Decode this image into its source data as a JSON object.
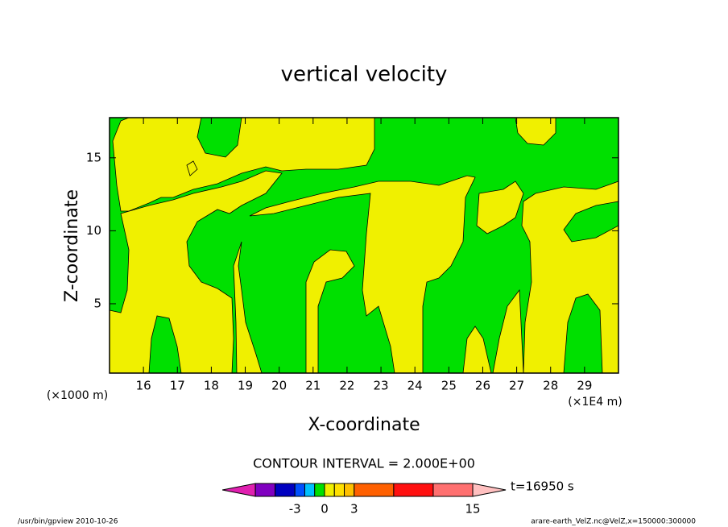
{
  "chart_data": {
    "type": "contour",
    "title": "vertical velocity",
    "x_label": "X-coordinate",
    "y_label": "Z-coordinate",
    "x_unit_note": "(×1E4 m)",
    "y_unit_note": "(×1000 m)",
    "xlim": [
      15,
      30
    ],
    "xticks": [
      16,
      17,
      18,
      19,
      20,
      21,
      22,
      23,
      24,
      25,
      26,
      27,
      28,
      29
    ],
    "ylim": [
      0.25,
      17.75
    ],
    "yticks": [
      5,
      10,
      15
    ],
    "contour_note": "CONTOUR INTERVAL = 2.000E+00",
    "time_note": "t=16950 s",
    "colorbar": {
      "boundaries": [
        -7,
        -5,
        -3,
        -2,
        -1,
        0,
        1,
        2,
        3,
        7,
        11,
        15
      ],
      "colors": [
        "#e020b0",
        "#8000c0",
        "#0000c0",
        "#0050ff",
        "#00c0ff",
        "#00e000",
        "#f0f000",
        "#ffe000",
        "#ffc000",
        "#ff6000",
        "#ff1010",
        "#ff7070",
        "#ffc0c0"
      ],
      "ticks": [
        -3,
        0,
        3,
        15
      ]
    },
    "footer_left": "/usr/bin/gpview  2010-10-26",
    "footer_right": "arare-earth_VelZ.nc@VelZ,x=150000:300000"
  }
}
